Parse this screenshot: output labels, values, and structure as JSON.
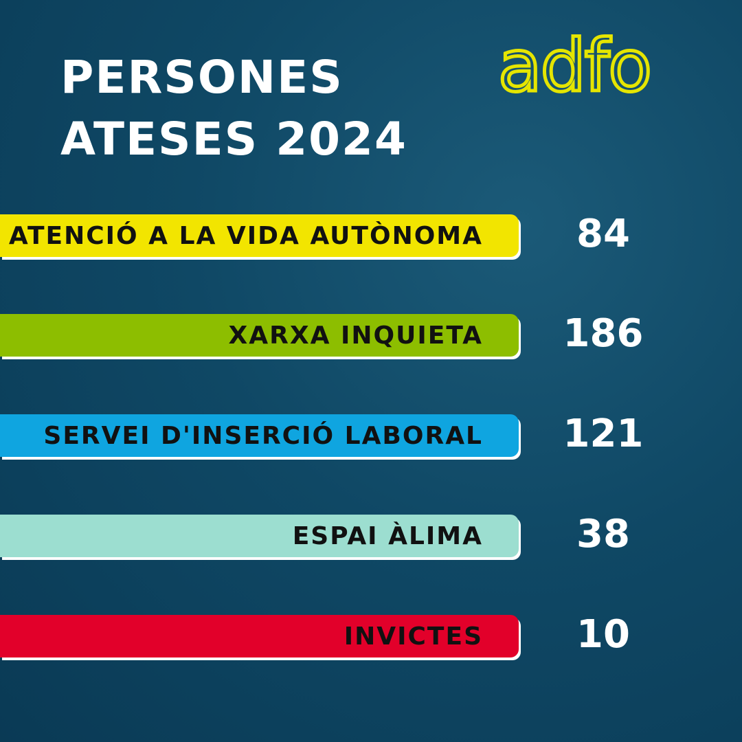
{
  "header": {
    "title_lines": [
      "PERSONES",
      "ATESES 2024"
    ],
    "logo": "adfo"
  },
  "items": [
    {
      "label": "ATENCIÓ A LA VIDA AUTÒNOMA",
      "value": 84,
      "color": "#f2e500"
    },
    {
      "label": "XARXA INQUIETA",
      "value": 186,
      "color": "#8dbe00"
    },
    {
      "label": "SERVEI D'INSERCIÓ LABORAL",
      "value": 121,
      "color": "#0fa5e0"
    },
    {
      "label": "ESPAI ÀLIMA",
      "value": 38,
      "color": "#9cded0"
    },
    {
      "label": "INVICTES",
      "value": 10,
      "color": "#e2002a"
    }
  ]
}
